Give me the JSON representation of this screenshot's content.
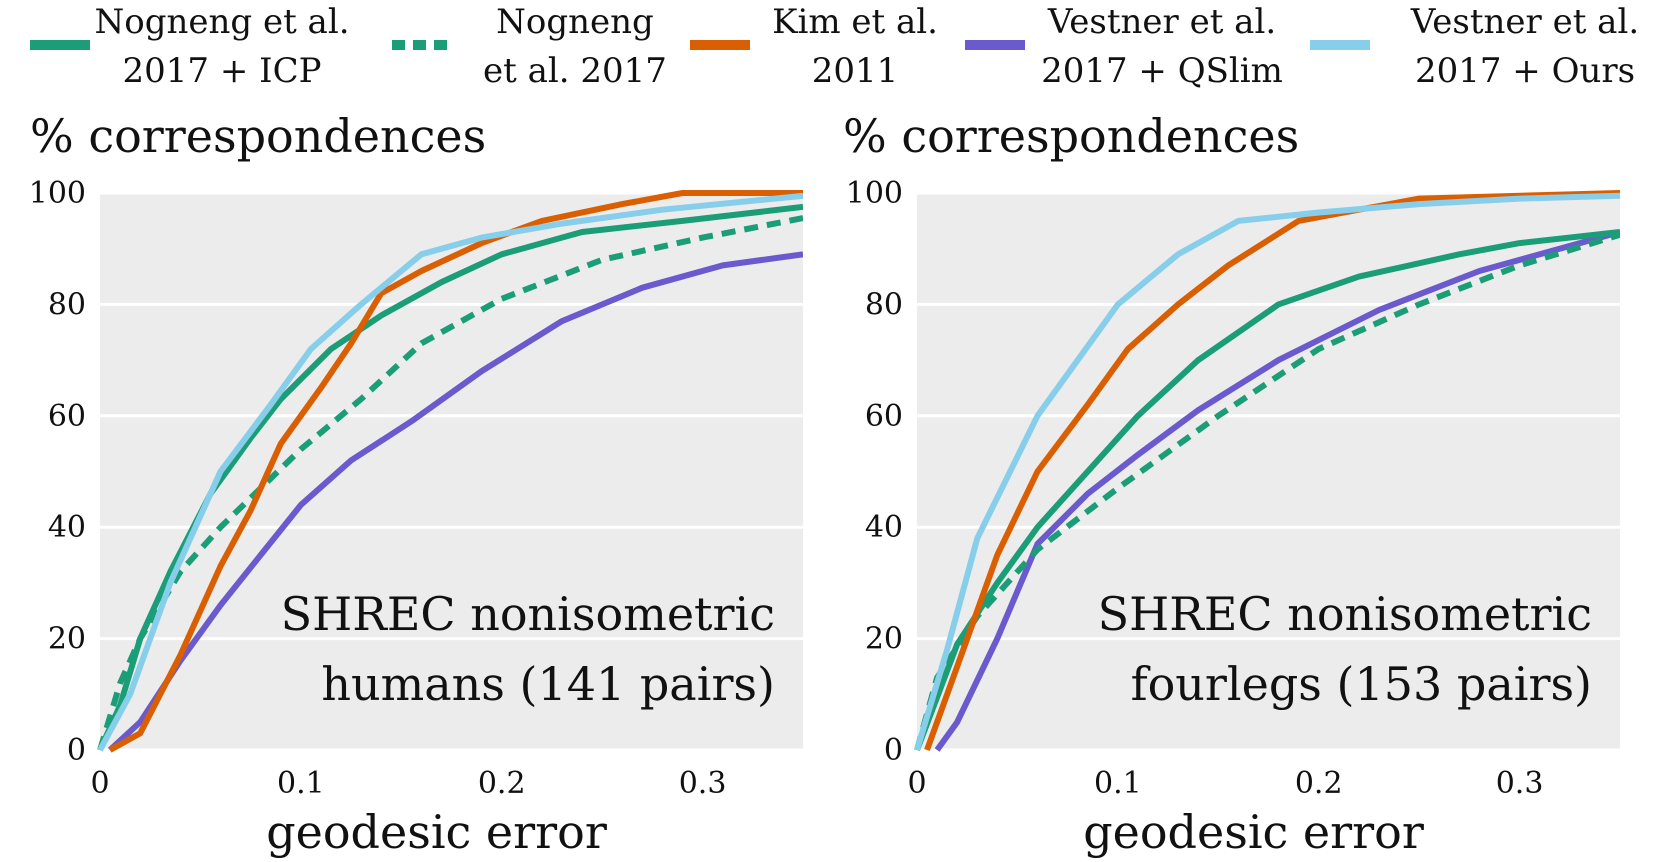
{
  "legend": [
    {
      "lines": [
        "Nogneng et al.",
        "2017 + ICP"
      ],
      "color": "#1b9e77",
      "dashed": false
    },
    {
      "lines": [
        "Nogneng",
        "et al. 2017"
      ],
      "color": "#1b9e77",
      "dashed": true
    },
    {
      "lines": [
        "Kim et al.",
        "2011"
      ],
      "color": "#d95f02",
      "dashed": false
    },
    {
      "lines": [
        "Vestner et al.",
        "2017 + QSlim"
      ],
      "color": "#6a5acd",
      "dashed": false
    },
    {
      "lines": [
        "Vestner et al.",
        "2017 + Ours"
      ],
      "color": "#87ceeb",
      "dashed": false
    }
  ],
  "chart_data": [
    {
      "type": "line",
      "ylabel": "% correspondences",
      "xlabel": "geodesic error",
      "annotation": [
        "SHREC nonisometric",
        "humans (141 pairs)"
      ],
      "xlim": [
        0,
        0.35
      ],
      "ylim": [
        0,
        100
      ],
      "xticks": [
        "0",
        "0.1",
        "0.2",
        "0.3"
      ],
      "xtick_values": [
        0,
        0.1,
        0.2,
        0.3
      ],
      "yticks": [
        "0",
        "20",
        "40",
        "60",
        "80",
        "100"
      ],
      "ytick_values": [
        0,
        20,
        40,
        60,
        80,
        100
      ],
      "grid": true,
      "series": [
        {
          "name": "Nogneng et al. 2017 + ICP",
          "color": "#1b9e77",
          "dashed": false,
          "x": [
            0,
            0.01,
            0.02,
            0.035,
            0.055,
            0.075,
            0.09,
            0.115,
            0.14,
            0.17,
            0.2,
            0.24,
            0.29,
            0.35
          ],
          "y": [
            0,
            8,
            20,
            32,
            46,
            56,
            63,
            72,
            78,
            84,
            89,
            93,
            95,
            97.5
          ]
        },
        {
          "name": "Nogneng et al. 2017",
          "color": "#1b9e77",
          "dashed": true,
          "x": [
            0,
            0.01,
            0.02,
            0.04,
            0.06,
            0.08,
            0.1,
            0.13,
            0.16,
            0.2,
            0.25,
            0.3,
            0.35
          ],
          "y": [
            0,
            12,
            20,
            32,
            40,
            47,
            54,
            63,
            73,
            81,
            88,
            92,
            95.5
          ]
        },
        {
          "name": "Kim et al. 2011",
          "color": "#d95f02",
          "dashed": false,
          "x": [
            0.005,
            0.02,
            0.04,
            0.06,
            0.075,
            0.09,
            0.11,
            0.125,
            0.14,
            0.16,
            0.19,
            0.22,
            0.26,
            0.29,
            0.35
          ],
          "y": [
            0,
            3,
            17,
            33,
            43,
            55,
            65,
            73,
            82,
            86,
            91,
            95,
            98,
            100,
            100
          ]
        },
        {
          "name": "Vestner et al. 2017 + QSlim",
          "color": "#6a5acd",
          "dashed": false,
          "x": [
            0.005,
            0.02,
            0.04,
            0.06,
            0.08,
            0.1,
            0.125,
            0.155,
            0.19,
            0.23,
            0.27,
            0.31,
            0.35
          ],
          "y": [
            0,
            5,
            16,
            26,
            35,
            44,
            52,
            59,
            68,
            77,
            83,
            87,
            89
          ]
        },
        {
          "name": "Vestner et al. 2017 + Ours",
          "color": "#87ceeb",
          "dashed": false,
          "x": [
            0,
            0.015,
            0.035,
            0.06,
            0.085,
            0.105,
            0.13,
            0.16,
            0.19,
            0.23,
            0.28,
            0.35
          ],
          "y": [
            0,
            10,
            30,
            50,
            62,
            72,
            80,
            89,
            92,
            94.5,
            97,
            99.5
          ]
        }
      ]
    },
    {
      "type": "line",
      "ylabel": "% correspondences",
      "xlabel": "geodesic error",
      "annotation": [
        "SHREC nonisometric",
        "fourlegs (153 pairs)"
      ],
      "xlim": [
        0,
        0.35
      ],
      "ylim": [
        0,
        100
      ],
      "xticks": [
        "0",
        "0.1",
        "0.2",
        "0.3"
      ],
      "xtick_values": [
        0,
        0.1,
        0.2,
        0.3
      ],
      "yticks": [
        "0",
        "20",
        "40",
        "60",
        "80",
        "100"
      ],
      "ytick_values": [
        0,
        20,
        40,
        60,
        80,
        100
      ],
      "grid": true,
      "series": [
        {
          "name": "Nogneng et al. 2017 + ICP",
          "color": "#1b9e77",
          "dashed": false,
          "x": [
            0,
            0.02,
            0.04,
            0.06,
            0.085,
            0.11,
            0.14,
            0.18,
            0.22,
            0.27,
            0.3,
            0.35
          ],
          "y": [
            0,
            19,
            30,
            40,
            50,
            60,
            70,
            80,
            85,
            89,
            91,
            93
          ]
        },
        {
          "name": "Nogneng et al. 2017",
          "color": "#1b9e77",
          "dashed": true,
          "x": [
            0,
            0.01,
            0.03,
            0.06,
            0.1,
            0.15,
            0.2,
            0.25,
            0.3,
            0.35
          ],
          "y": [
            0,
            13,
            24,
            36,
            47,
            60,
            72,
            80,
            87,
            92.5
          ]
        },
        {
          "name": "Kim et al. 2011",
          "color": "#d95f02",
          "dashed": false,
          "x": [
            0.005,
            0.02,
            0.04,
            0.06,
            0.085,
            0.105,
            0.13,
            0.155,
            0.19,
            0.22,
            0.25,
            0.35
          ],
          "y": [
            0,
            15,
            35,
            50,
            62,
            72,
            80,
            87,
            95,
            97,
            99,
            100
          ]
        },
        {
          "name": "Vestner et al. 2017 + QSlim",
          "color": "#6a5acd",
          "dashed": false,
          "x": [
            0.01,
            0.02,
            0.04,
            0.06,
            0.085,
            0.11,
            0.14,
            0.18,
            0.23,
            0.28,
            0.35
          ],
          "y": [
            0,
            5,
            20,
            37,
            46,
            53,
            61,
            70,
            79,
            86,
            93
          ]
        },
        {
          "name": "Vestner et al. 2017 + Ours",
          "color": "#87ceeb",
          "dashed": false,
          "x": [
            0,
            0.015,
            0.03,
            0.06,
            0.08,
            0.1,
            0.13,
            0.16,
            0.2,
            0.25,
            0.3,
            0.35
          ],
          "y": [
            0,
            18,
            38,
            60,
            70,
            80,
            89,
            95,
            96.5,
            98,
            99,
            99.5
          ]
        }
      ]
    }
  ]
}
